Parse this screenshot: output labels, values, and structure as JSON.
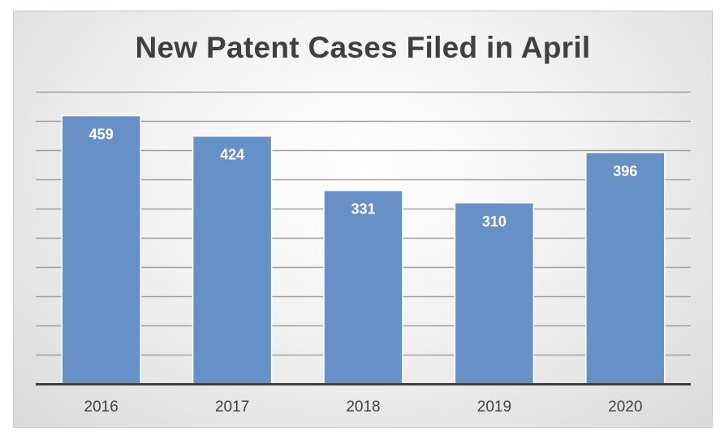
{
  "chart_data": {
    "type": "bar",
    "title": "New Patent Cases Filed in April",
    "categories": [
      "2016",
      "2017",
      "2018",
      "2019",
      "2020"
    ],
    "values": [
      459,
      424,
      331,
      310,
      396
    ],
    "data_labels": [
      "459",
      "424",
      "331",
      "310",
      "396"
    ],
    "xlabel": "",
    "ylabel": "",
    "ylim": [
      0,
      500
    ],
    "grid": true,
    "legend": "none",
    "colors": {
      "bar": "#6690c6",
      "bar_edge": "#ffffff",
      "gridline": "#a0a0a0",
      "axis": "#404040",
      "tick_label": "#404040",
      "data_label": "#ffffff",
      "title": "#404040"
    }
  }
}
